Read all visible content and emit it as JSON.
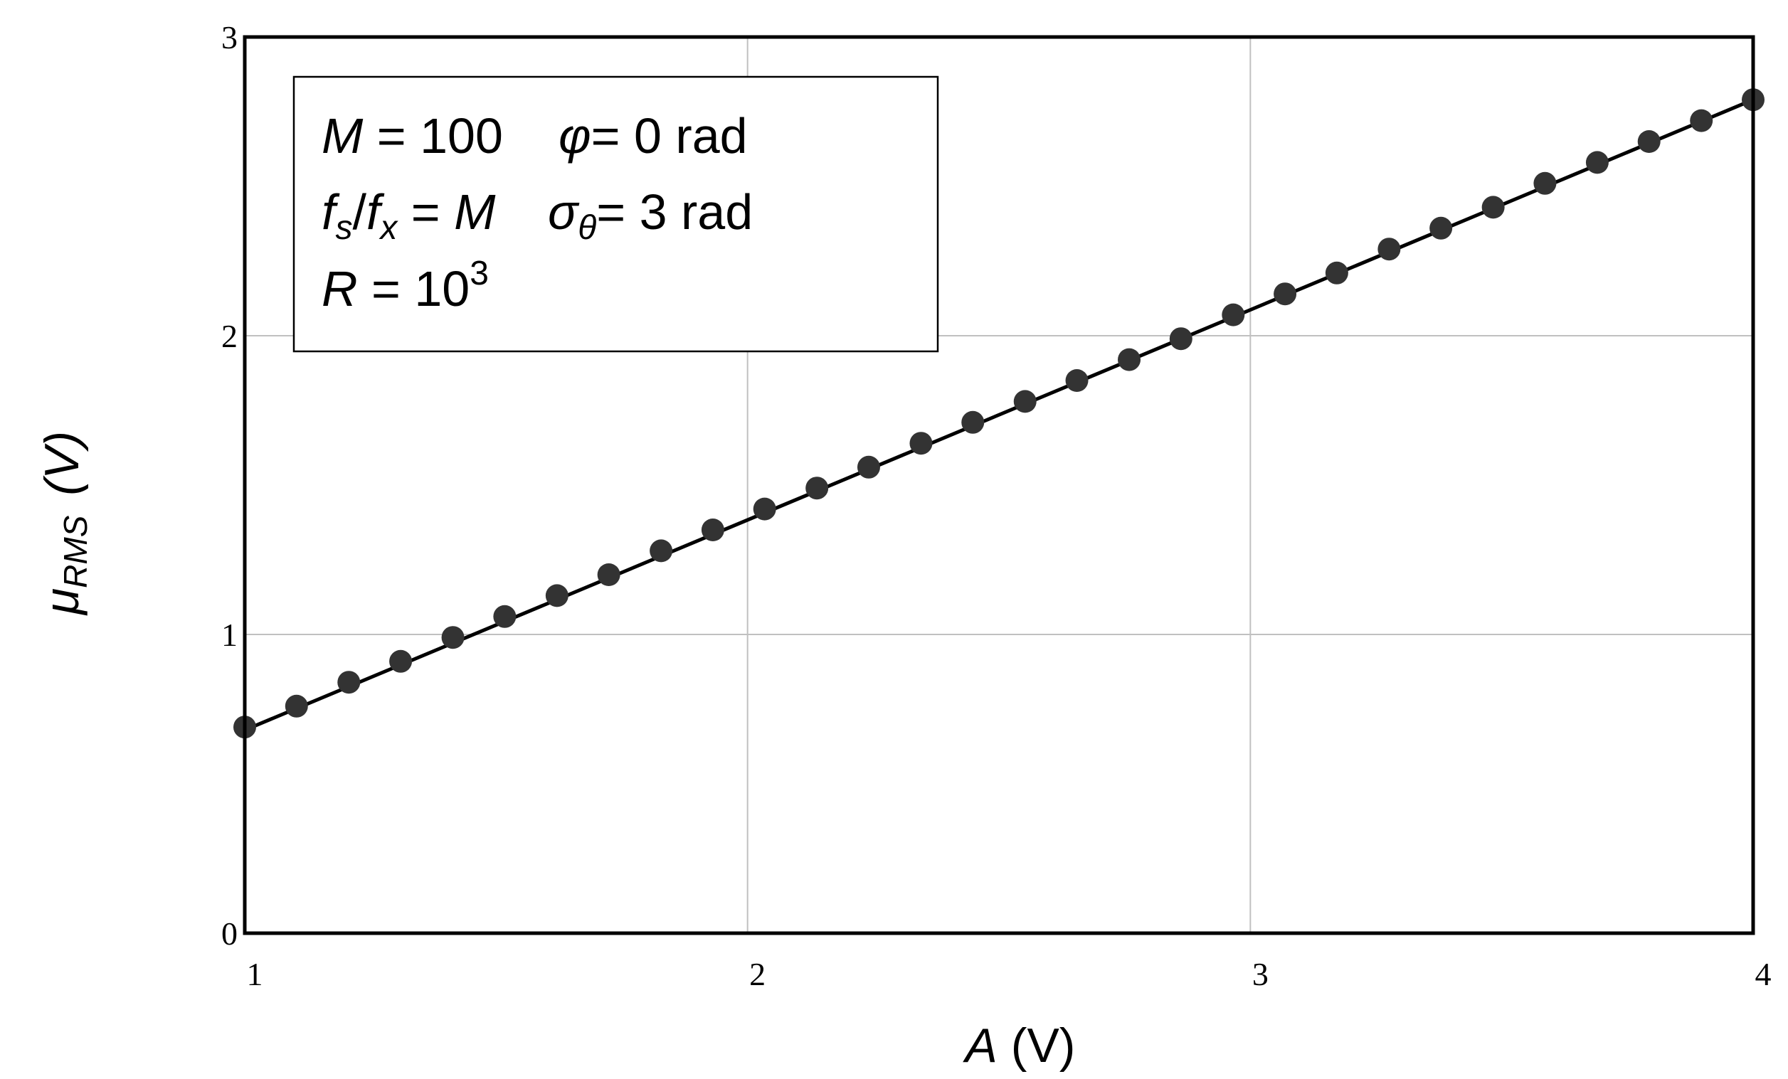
{
  "chart_data": {
    "type": "line",
    "xlabel": {
      "var": "A",
      "unit": " (V)"
    },
    "ylabel": {
      "var": "μ",
      "sub": "RMS",
      "unit": "(V)"
    },
    "xlim": [
      1,
      4
    ],
    "ylim": [
      0,
      3
    ],
    "x_ticks": [
      "1",
      "2",
      "3",
      "4"
    ],
    "y_ticks": [
      "0",
      "1",
      "2",
      "3"
    ],
    "grid": true,
    "legend_position": "top-left",
    "annotation": {
      "line1": {
        "m_var": "M",
        "m_val": " = 100",
        "phi_var": "φ",
        "phi_val": "= 0 rad"
      },
      "line2": {
        "fs": "f",
        "fs_sub": "s",
        "slash": "/",
        "fx": "f",
        "fx_sub": "x",
        "eq": " = ",
        "m": "M",
        "sigma": "σ",
        "sigma_sub": "θ",
        "sigma_val": "= 3 rad"
      },
      "line3": {
        "r_var": "R",
        "r_val": " = 10",
        "r_exp": "3"
      }
    },
    "series": [
      {
        "kind": "line",
        "color": "#000000",
        "x": [
          1.0,
          4.0
        ],
        "y": [
          0.68,
          2.79
        ]
      },
      {
        "kind": "markers",
        "color": "#333333",
        "x": [
          1.0,
          1.103,
          1.207,
          1.31,
          1.414,
          1.517,
          1.621,
          1.724,
          1.828,
          1.931,
          2.034,
          2.138,
          2.241,
          2.345,
          2.448,
          2.552,
          2.655,
          2.759,
          2.862,
          2.966,
          3.069,
          3.172,
          3.276,
          3.379,
          3.483,
          3.586,
          3.69,
          3.793,
          3.897,
          4.0
        ],
        "y": [
          0.69,
          0.76,
          0.84,
          0.91,
          0.99,
          1.06,
          1.13,
          1.2,
          1.28,
          1.35,
          1.42,
          1.49,
          1.56,
          1.64,
          1.71,
          1.78,
          1.85,
          1.92,
          1.99,
          2.07,
          2.14,
          2.21,
          2.29,
          2.36,
          2.43,
          2.51,
          2.58,
          2.65,
          2.72,
          2.79
        ]
      }
    ]
  }
}
